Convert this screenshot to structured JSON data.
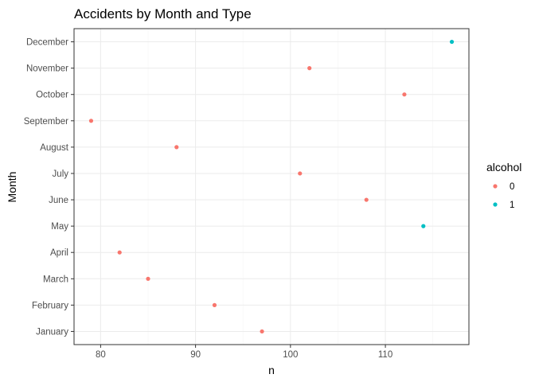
{
  "chart_data": {
    "type": "scatter",
    "title": "Accidents by Month and Type",
    "xlabel": "n",
    "ylabel": "Month",
    "xlim": [
      77.2,
      118.8
    ],
    "x_ticks": [
      80,
      90,
      100,
      110
    ],
    "categories": [
      "January",
      "February",
      "March",
      "April",
      "May",
      "June",
      "July",
      "August",
      "September",
      "October",
      "November",
      "December"
    ],
    "legend": {
      "title": "alcohol",
      "position": "right"
    },
    "grid": true,
    "series": [
      {
        "name": "0",
        "color": "#F8766D",
        "points": [
          {
            "month": "January",
            "n": 97
          },
          {
            "month": "February",
            "n": 92
          },
          {
            "month": "March",
            "n": 85
          },
          {
            "month": "April",
            "n": 82
          },
          {
            "month": "June",
            "n": 108
          },
          {
            "month": "July",
            "n": 101
          },
          {
            "month": "August",
            "n": 88
          },
          {
            "month": "September",
            "n": 79
          },
          {
            "month": "October",
            "n": 112
          },
          {
            "month": "November",
            "n": 102
          }
        ]
      },
      {
        "name": "1",
        "color": "#00BFC4",
        "points": [
          {
            "month": "May",
            "n": 114
          },
          {
            "month": "December",
            "n": 117
          }
        ]
      }
    ]
  }
}
